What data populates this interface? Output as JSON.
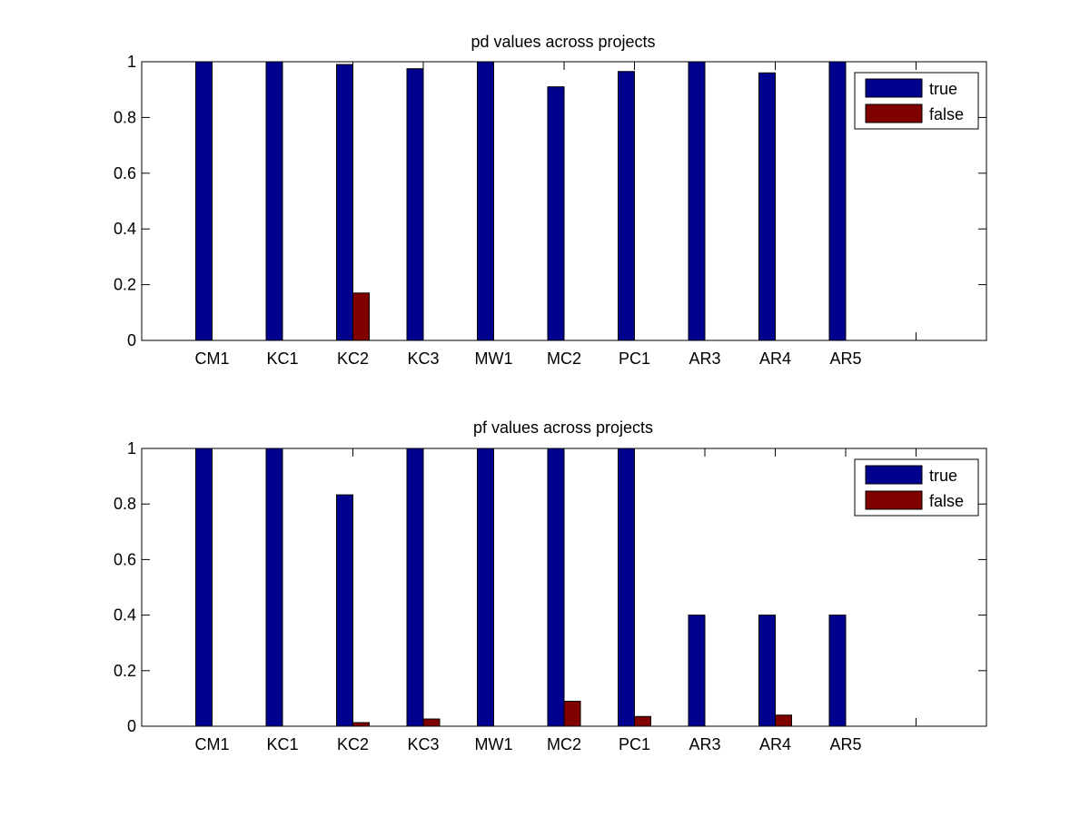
{
  "chart_data": [
    {
      "type": "bar",
      "title": "pd values across projects",
      "xlabel": "",
      "ylabel": "",
      "categories": [
        "CM1",
        "KC1",
        "KC2",
        "KC3",
        "MW1",
        "MC2",
        "PC1",
        "AR3",
        "AR4",
        "AR5"
      ],
      "series": [
        {
          "name": "true",
          "color": "#00008f",
          "values": [
            1.0,
            1.0,
            0.99,
            0.975,
            1.0,
            0.91,
            0.965,
            1.0,
            0.96,
            1.0
          ]
        },
        {
          "name": "false",
          "color": "#800000",
          "values": [
            0,
            0,
            0.17,
            0,
            0,
            0,
            0,
            0,
            0,
            0
          ]
        }
      ],
      "ylim": [
        0,
        1
      ],
      "xlim": [
        0,
        12
      ],
      "yticks": [
        "0",
        "0.2",
        "0.4",
        "0.6",
        "0.8",
        "1"
      ],
      "grid": false,
      "legend_position": "top-right"
    },
    {
      "type": "bar",
      "title": "pf values across projects",
      "xlabel": "",
      "ylabel": "",
      "categories": [
        "CM1",
        "KC1",
        "KC2",
        "KC3",
        "MW1",
        "MC2",
        "PC1",
        "AR3",
        "AR4",
        "AR5"
      ],
      "series": [
        {
          "name": "true",
          "color": "#00008f",
          "values": [
            1.0,
            1.0,
            0.833,
            1.0,
            1.0,
            1.0,
            1.0,
            0.4,
            0.4,
            0.4
          ]
        },
        {
          "name": "false",
          "color": "#800000",
          "values": [
            0,
            0,
            0.013,
            0.026,
            0,
            0.09,
            0.035,
            0,
            0.04,
            0
          ]
        }
      ],
      "ylim": [
        0,
        1
      ],
      "xlim": [
        0,
        12
      ],
      "yticks": [
        "0",
        "0.2",
        "0.4",
        "0.6",
        "0.8",
        "1"
      ],
      "grid": false,
      "legend_position": "top-right"
    }
  ]
}
